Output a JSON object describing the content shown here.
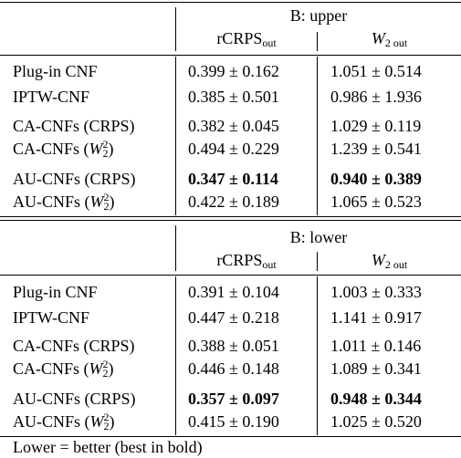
{
  "blocks": [
    {
      "title": "B: upper",
      "col1": "rCRPS",
      "col1_sub": "out",
      "col2": "W",
      "col2_sub": "2 out",
      "rows": [
        {
          "method": "Plug-in CNF",
          "v1": "0.399 ± 0.162",
          "v2": "1.051 ± 0.514",
          "bold": false
        },
        {
          "method": "IPTW-CNF",
          "v1": "0.385 ± 0.501",
          "v2": "0.986 ± 1.936",
          "bold": false
        },
        {
          "method": "CA-CNFs (CRPS)",
          "v1": "0.382 ± 0.045",
          "v2": "1.029 ± 0.119",
          "bold": false
        },
        {
          "method_pre": "CA-CNFs (",
          "method_sym": "W",
          "method_sup": "2",
          "method_sub": "2",
          "method_post": ")",
          "v1": "0.494 ± 0.229",
          "v2": "1.239 ± 0.541",
          "bold": false
        },
        {
          "method": "AU-CNFs (CRPS)",
          "v1": "0.347 ± 0.114",
          "v2": "0.940 ± 0.389",
          "bold": true
        },
        {
          "method_pre": "AU-CNFs (",
          "method_sym": "W",
          "method_sup": "2",
          "method_sub": "2",
          "method_post": ")",
          "v1": "0.422 ± 0.189",
          "v2": "1.065 ± 0.523",
          "bold": false
        }
      ]
    },
    {
      "title": "B: lower",
      "col1": "rCRPS",
      "col1_sub": "out",
      "col2": "W",
      "col2_sub": "2 out",
      "rows": [
        {
          "method": "Plug-in CNF",
          "v1": "0.391 ± 0.104",
          "v2": "1.003 ± 0.333",
          "bold": false
        },
        {
          "method": "IPTW-CNF",
          "v1": "0.447 ± 0.218",
          "v2": "1.141 ± 0.917",
          "bold": false
        },
        {
          "method": "CA-CNFs (CRPS)",
          "v1": "0.388 ± 0.051",
          "v2": "1.011 ± 0.146",
          "bold": false
        },
        {
          "method_pre": "CA-CNFs (",
          "method_sym": "W",
          "method_sup": "2",
          "method_sub": "2",
          "method_post": ")",
          "v1": "0.446 ± 0.148",
          "v2": "1.089 ± 0.341",
          "bold": false
        },
        {
          "method": "AU-CNFs (CRPS)",
          "v1": "0.357 ± 0.097",
          "v2": "0.948 ± 0.344",
          "bold": true
        },
        {
          "method_pre": "AU-CNFs (",
          "method_sym": "W",
          "method_sup": "2",
          "method_sub": "2",
          "method_post": ")",
          "v1": "0.415 ± 0.190",
          "v2": "1.025 ± 0.520",
          "bold": false
        }
      ]
    }
  ],
  "footer": "Lower = better (best in bold)"
}
